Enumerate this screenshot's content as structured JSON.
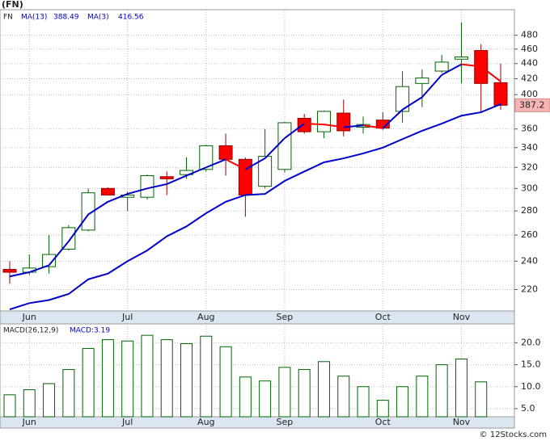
{
  "footer": "© 12Stocks.com",
  "chart_data": [
    {
      "type": "candlestick",
      "title": "(FN)",
      "symbol": "FN",
      "log_scale": true,
      "grid": true,
      "up_color": "#006400",
      "down_color": "#ff0000",
      "categories": [
        null,
        "Jun",
        null,
        null,
        null,
        null,
        "Jul",
        null,
        null,
        null,
        "Aug",
        null,
        null,
        null,
        "Sep",
        null,
        null,
        null,
        null,
        "Oct",
        null,
        null,
        null,
        "Nov",
        null,
        null
      ],
      "open": [
        234,
        232,
        236,
        249,
        264,
        300,
        292,
        292,
        311,
        313,
        318,
        342,
        328,
        302,
        318,
        372,
        357,
        378,
        362,
        370,
        380,
        414,
        430,
        446,
        458,
        415
      ],
      "high": [
        240,
        245,
        260,
        268,
        300,
        301,
        297,
        313,
        316,
        330,
        343,
        355,
        330,
        360,
        368,
        377,
        381,
        394,
        374,
        379,
        430,
        432,
        452,
        499,
        467,
        440
      ],
      "low": [
        224,
        230,
        231,
        248,
        263,
        294,
        280,
        290,
        294,
        309,
        316,
        312,
        275,
        300,
        315,
        355,
        350,
        352,
        355,
        359,
        367,
        385,
        428,
        414,
        380,
        382
      ],
      "close": [
        232,
        235,
        245,
        266,
        296,
        294,
        294,
        312,
        309,
        317,
        342,
        328,
        294,
        331,
        367,
        357,
        380,
        358,
        365,
        361,
        410,
        421,
        442,
        449,
        414,
        387.2
      ],
      "series": [
        {
          "name": "MA(13)",
          "color": "#0000cc",
          "values": [
            207,
            211,
            213,
            217,
            227,
            231,
            240,
            248,
            259,
            267,
            278,
            288,
            294,
            295,
            307,
            316,
            325,
            329,
            334,
            340,
            349,
            358,
            366,
            375,
            379,
            388.49
          ]
        },
        {
          "name": "MA(3)",
          "color": "#0000cc",
          "down_color": "#ff0000",
          "values": [
            229,
            232,
            237,
            255,
            277,
            288,
            295,
            300,
            304,
            312,
            320,
            328,
            318,
            329,
            350,
            366,
            365,
            362,
            364,
            361,
            382,
            397,
            425,
            439,
            436,
            416.56
          ]
        }
      ],
      "last_price": 387.2,
      "ylim": [
        206,
        514
      ],
      "yticks": [
        220,
        240,
        260,
        280,
        300,
        320,
        340,
        360,
        400,
        420,
        440,
        460,
        480
      ]
    },
    {
      "type": "bar",
      "title": "MACD(26,12,9)",
      "legend_label": "MACD:3.19",
      "color": "#006400",
      "grid": true,
      "values": [
        8.15,
        9.3,
        10.7,
        13.9,
        18.7,
        20.7,
        20.4,
        21.7,
        20.7,
        19.8,
        21.5,
        19.1,
        12.2,
        11.3,
        14.4,
        13.9,
        15.7,
        12.4,
        10.0,
        6.9,
        10.0,
        12.4,
        15.0,
        16.3,
        11.1,
        null
      ],
      "ylim": [
        3.15,
        24.3
      ],
      "yticks": [
        {
          "value": 5,
          "label": "5.0"
        },
        {
          "value": 10,
          "label": "10.0"
        },
        {
          "value": 15,
          "label": "15.0"
        },
        {
          "value": 20,
          "label": "20.0"
        }
      ]
    }
  ]
}
